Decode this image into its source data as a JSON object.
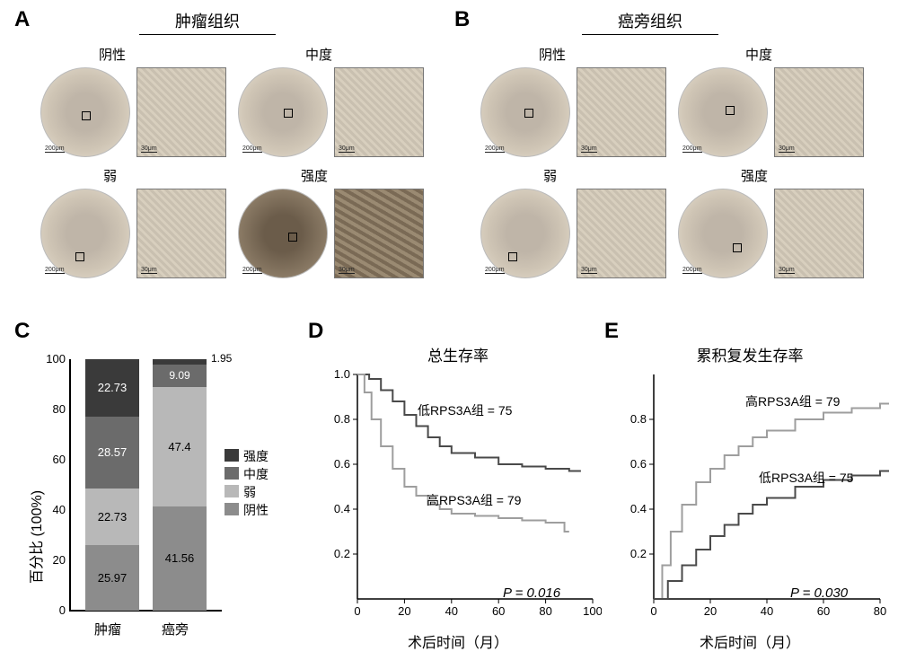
{
  "panelA": {
    "label": "A",
    "title": "肿瘤组织",
    "cells": [
      {
        "lbl": "阴性"
      },
      {
        "lbl": "中度"
      },
      {
        "lbl": "弱"
      },
      {
        "lbl": "强度"
      }
    ],
    "scale_circle": "200μm",
    "scale_zoom": "30μm"
  },
  "panelB": {
    "label": "B",
    "title": "癌旁组织",
    "cells": [
      {
        "lbl": "阴性"
      },
      {
        "lbl": "中度"
      },
      {
        "lbl": "弱"
      },
      {
        "lbl": "强度"
      }
    ],
    "scale_circle": "200μm",
    "scale_zoom": "30μm"
  },
  "panelC": {
    "label": "C",
    "ylabel": "百分比 (100%)",
    "yticks": [
      0,
      20,
      40,
      60,
      80,
      100
    ],
    "xlabels": [
      "肿瘤",
      "癌旁"
    ],
    "legend": [
      "强度",
      "中度",
      "弱",
      "阴性"
    ],
    "colors": {
      "strong": "#3a3a3a",
      "moderate": "#6b6b6b",
      "weak": "#b8b8b8",
      "negative": "#8c8c8c"
    },
    "bars": {
      "tumor": {
        "strong": 22.73,
        "moderate": 28.57,
        "weak": 22.73,
        "negative": 25.97
      },
      "adjacent": {
        "strong": 1.95,
        "moderate": 9.09,
        "weak": 47.4,
        "negative": 41.56
      }
    }
  },
  "panelD": {
    "label": "D",
    "title": "总生存率",
    "xlabel": "术后时间（月）",
    "xticks": [
      0,
      20,
      40,
      60,
      80,
      100
    ],
    "yticks": [
      0.2,
      0.4,
      0.6,
      0.8,
      1.0
    ],
    "p_text": "P = 0.016",
    "curve_label_low": "低RPS3A组 = 75",
    "curve_label_high": "高RPS3A组 = 79",
    "colors": {
      "low": "#4a4a4a",
      "high": "#9e9e9e",
      "axis": "#000000"
    },
    "line_width": 2,
    "low_curve": [
      [
        0,
        1.0
      ],
      [
        5,
        0.98
      ],
      [
        10,
        0.93
      ],
      [
        15,
        0.88
      ],
      [
        20,
        0.82
      ],
      [
        25,
        0.77
      ],
      [
        30,
        0.72
      ],
      [
        35,
        0.68
      ],
      [
        40,
        0.65
      ],
      [
        50,
        0.63
      ],
      [
        60,
        0.6
      ],
      [
        70,
        0.59
      ],
      [
        80,
        0.58
      ],
      [
        90,
        0.57
      ],
      [
        95,
        0.57
      ]
    ],
    "high_curve": [
      [
        0,
        1.0
      ],
      [
        3,
        0.92
      ],
      [
        6,
        0.8
      ],
      [
        10,
        0.68
      ],
      [
        15,
        0.58
      ],
      [
        20,
        0.5
      ],
      [
        25,
        0.46
      ],
      [
        30,
        0.42
      ],
      [
        35,
        0.4
      ],
      [
        40,
        0.38
      ],
      [
        50,
        0.37
      ],
      [
        60,
        0.36
      ],
      [
        70,
        0.35
      ],
      [
        80,
        0.34
      ],
      [
        88,
        0.3
      ],
      [
        90,
        0.3
      ]
    ]
  },
  "panelE": {
    "label": "E",
    "title": "累积复发生存率",
    "xlabel": "术后时间（月）",
    "xticks": [
      0,
      20,
      40,
      60,
      80
    ],
    "yticks": [
      0.2,
      0.4,
      0.6,
      0.8
    ],
    "p_text": "P = 0.030",
    "curve_label_low": "低RPS3A组 = 75",
    "curve_label_high": "高RPS3A组 = 79",
    "colors": {
      "low": "#4a4a4a",
      "high": "#9e9e9e",
      "axis": "#000000"
    },
    "line_width": 2,
    "high_curve": [
      [
        0,
        0
      ],
      [
        3,
        0.15
      ],
      [
        6,
        0.3
      ],
      [
        10,
        0.42
      ],
      [
        15,
        0.52
      ],
      [
        20,
        0.58
      ],
      [
        25,
        0.64
      ],
      [
        30,
        0.68
      ],
      [
        35,
        0.72
      ],
      [
        40,
        0.75
      ],
      [
        50,
        0.8
      ],
      [
        60,
        0.83
      ],
      [
        70,
        0.85
      ],
      [
        80,
        0.87
      ],
      [
        88,
        0.88
      ]
    ],
    "low_curve": [
      [
        0,
        0
      ],
      [
        5,
        0.08
      ],
      [
        10,
        0.15
      ],
      [
        15,
        0.22
      ],
      [
        20,
        0.28
      ],
      [
        25,
        0.33
      ],
      [
        30,
        0.38
      ],
      [
        35,
        0.42
      ],
      [
        40,
        0.45
      ],
      [
        50,
        0.5
      ],
      [
        60,
        0.53
      ],
      [
        70,
        0.55
      ],
      [
        80,
        0.57
      ],
      [
        88,
        0.58
      ]
    ]
  }
}
